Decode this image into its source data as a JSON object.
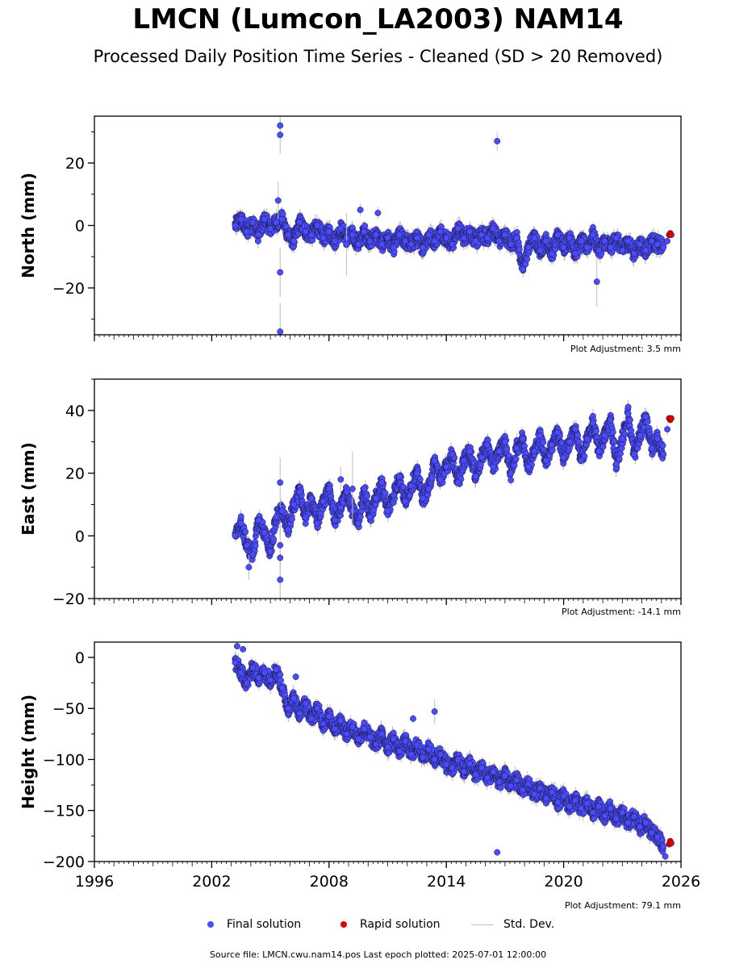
{
  "title": "LMCN (Lumcon_LA2003) NAM14",
  "subtitle": "Processed Daily Position Time Series - Cleaned (SD > 20 Removed)",
  "colors": {
    "final": "#4b4bff",
    "rapid": "#e00000",
    "stddev": "#bdbdbd"
  },
  "legend": {
    "final": "Final solution",
    "rapid": "Rapid solution",
    "stddev": "Std. Dev."
  },
  "source": "Source file: LMCN.cwu.nam14.pos  Last epoch plotted: 2025-07-01 12:00:00",
  "chart_data": [
    {
      "type": "scatter",
      "ylabel": "North (mm)",
      "adjustment": "Plot Adjustment: 3.5 mm",
      "xlim": [
        1996,
        2026
      ],
      "ylim": [
        -35,
        35
      ],
      "yticks": [
        -20,
        0,
        20
      ],
      "ytick_labels": [
        "−20",
        "0",
        "20"
      ],
      "series": [
        {
          "kind": "final",
          "x": [
            2003.2,
            2003.5,
            2003.8,
            2004.1,
            2004.4,
            2004.7,
            2005.0,
            2005.3,
            2005.6,
            2005.9,
            2006.2,
            2006.5,
            2006.8,
            2007.1,
            2007.4,
            2007.7,
            2008.0,
            2008.3,
            2008.6,
            2008.9,
            2009.2,
            2009.5,
            2009.8,
            2010.1,
            2010.4,
            2010.7,
            2011.0,
            2011.3,
            2011.6,
            2011.9,
            2012.2,
            2012.5,
            2012.8,
            2013.1,
            2013.4,
            2013.7,
            2014.0,
            2014.3,
            2014.6,
            2014.9,
            2015.2,
            2015.5,
            2015.8,
            2016.1,
            2016.4,
            2016.7,
            2017.0,
            2017.3,
            2017.6,
            2017.9,
            2018.2,
            2018.5,
            2018.8,
            2019.1,
            2019.4,
            2019.7,
            2020.0,
            2020.3,
            2020.6,
            2020.9,
            2021.2,
            2021.5,
            2021.8,
            2022.1,
            2022.4,
            2022.7,
            2023.0,
            2023.3,
            2023.6,
            2023.9,
            2024.2,
            2024.5,
            2024.8,
            2025.1
          ],
          "y": [
            0,
            2,
            -2,
            1,
            -3,
            2,
            -1,
            1,
            2,
            -3,
            -5,
            1,
            -2,
            -3,
            0,
            -4,
            -2,
            -5,
            -1,
            -4,
            -3,
            -6,
            -2,
            -5,
            -3,
            -6,
            -4,
            -7,
            -3,
            -5,
            -6,
            -4,
            -7,
            -3,
            -5,
            -2,
            -4,
            -6,
            -1,
            -4,
            -2,
            -5,
            -3,
            -4,
            -1,
            -5,
            -3,
            -6,
            -4,
            -14,
            -7,
            -4,
            -8,
            -5,
            -9,
            -3,
            -7,
            -4,
            -9,
            -5,
            -7,
            -3,
            -8,
            -5,
            -7,
            -4,
            -8,
            -5,
            -9,
            -6,
            -8,
            -5,
            -6,
            -7
          ],
          "err": [
            3,
            3,
            4,
            3,
            4,
            3,
            4,
            6,
            6,
            4,
            3,
            3,
            3,
            3,
            3,
            3,
            3,
            3,
            3,
            3,
            3,
            3,
            3,
            3,
            3,
            3,
            3,
            3,
            3,
            3,
            3,
            3,
            3,
            3,
            3,
            3,
            3,
            3,
            3,
            3,
            3,
            3,
            3,
            3,
            3,
            3,
            3,
            3,
            3,
            4,
            3,
            3,
            3,
            3,
            3,
            3,
            3,
            3,
            3,
            3,
            3,
            3,
            3,
            3,
            3,
            3,
            3,
            3,
            3,
            3,
            3,
            3,
            3,
            3
          ]
        },
        {
          "kind": "final_outliers",
          "x": [
            2005.5,
            2005.5,
            2005.5,
            2005.5,
            2016.6,
            2009.6,
            2010.5,
            2021.7,
            2025.3,
            2008.9,
            2005.4
          ],
          "y": [
            32,
            29,
            -15,
            -34,
            27,
            5,
            4,
            -18,
            -5,
            -6,
            8
          ],
          "err": [
            4,
            6,
            8,
            9,
            3,
            2,
            2,
            8,
            2,
            10,
            6
          ]
        },
        {
          "kind": "rapid",
          "x": [
            2025.4,
            2025.45,
            2025.5
          ],
          "y": [
            -3,
            -2.5,
            -3
          ],
          "err": [
            0,
            0,
            0
          ]
        }
      ]
    },
    {
      "type": "scatter",
      "ylabel": "East (mm)",
      "adjustment": "Plot Adjustment: -14.1 mm",
      "xlim": [
        1996,
        2026
      ],
      "ylim": [
        -20,
        50
      ],
      "yticks": [
        -20,
        0,
        20,
        40
      ],
      "ytick_labels": [
        "−20",
        "0",
        "20",
        "40"
      ],
      "series": [
        {
          "kind": "final",
          "x": [
            2003.2,
            2003.5,
            2003.8,
            2004.1,
            2004.4,
            2004.7,
            2005.0,
            2005.3,
            2005.6,
            2005.9,
            2006.2,
            2006.5,
            2006.8,
            2007.1,
            2007.4,
            2007.7,
            2008.0,
            2008.3,
            2008.6,
            2008.9,
            2009.2,
            2009.5,
            2009.8,
            2010.1,
            2010.4,
            2010.7,
            2011.0,
            2011.3,
            2011.6,
            2011.9,
            2012.2,
            2012.5,
            2012.8,
            2013.1,
            2013.4,
            2013.7,
            2014.0,
            2014.3,
            2014.6,
            2014.9,
            2015.2,
            2015.5,
            2015.8,
            2016.1,
            2016.4,
            2016.7,
            2017.0,
            2017.3,
            2017.6,
            2017.9,
            2018.2,
            2018.5,
            2018.8,
            2019.1,
            2019.4,
            2019.7,
            2020.0,
            2020.3,
            2020.6,
            2020.9,
            2021.2,
            2021.5,
            2021.8,
            2022.1,
            2022.4,
            2022.7,
            2023.0,
            2023.3,
            2023.6,
            2023.9,
            2024.2,
            2024.5,
            2024.8,
            2025.1
          ],
          "y": [
            0,
            4,
            -3,
            -6,
            5,
            1,
            -5,
            6,
            8,
            2,
            10,
            14,
            6,
            12,
            4,
            11,
            15,
            5,
            9,
            14,
            8,
            4,
            15,
            6,
            12,
            17,
            8,
            13,
            19,
            11,
            16,
            20,
            12,
            15,
            24,
            18,
            22,
            26,
            17,
            24,
            27,
            19,
            25,
            29,
            22,
            27,
            30,
            20,
            28,
            31,
            22,
            27,
            32,
            24,
            29,
            33,
            25,
            30,
            34,
            24,
            31,
            36,
            27,
            32,
            37,
            23,
            31,
            39,
            26,
            32,
            38,
            28,
            31,
            26
          ],
          "err": [
            3,
            3,
            3,
            3,
            3,
            3,
            3,
            3,
            3,
            3,
            3,
            3,
            3,
            3,
            3,
            3,
            3,
            3,
            3,
            3,
            3,
            3,
            3,
            3,
            3,
            3,
            3,
            3,
            3,
            3,
            3,
            3,
            3,
            3,
            3,
            3,
            3,
            3,
            3,
            3,
            3,
            3,
            3,
            3,
            3,
            3,
            3,
            3,
            3,
            3,
            3,
            3,
            3,
            3,
            3,
            3,
            3,
            3,
            3,
            3,
            3,
            3,
            3,
            3,
            3,
            3,
            3,
            3,
            3,
            3,
            3,
            3,
            3,
            3
          ]
        },
        {
          "kind": "final_outliers",
          "x": [
            2005.5,
            2005.5,
            2005.5,
            2005.5,
            2009.2,
            2008.6,
            2003.9,
            2025.3
          ],
          "y": [
            17,
            -3,
            -7,
            -14,
            15,
            18,
            -10,
            34
          ],
          "err": [
            8,
            8,
            10,
            12,
            12,
            4,
            4,
            2
          ]
        },
        {
          "kind": "rapid",
          "x": [
            2025.4,
            2025.45,
            2025.5
          ],
          "y": [
            37.5,
            37,
            37.5
          ],
          "err": [
            0,
            0,
            0
          ]
        }
      ]
    },
    {
      "type": "scatter",
      "ylabel": "Height (mm)",
      "adjustment": "Plot Adjustment: 79.1 mm",
      "xlim": [
        1996,
        2026
      ],
      "ylim": [
        -200,
        15
      ],
      "yticks": [
        -200,
        -150,
        -100,
        -50,
        0
      ],
      "ytick_labels": [
        "−200",
        "−150",
        "−100",
        "−50",
        "0"
      ],
      "series": [
        {
          "kind": "final",
          "x": [
            2003.2,
            2003.5,
            2003.8,
            2004.1,
            2004.4,
            2004.7,
            2005.0,
            2005.3,
            2005.6,
            2005.9,
            2006.2,
            2006.5,
            2006.8,
            2007.1,
            2007.4,
            2007.7,
            2008.0,
            2008.3,
            2008.6,
            2008.9,
            2009.2,
            2009.5,
            2009.8,
            2010.1,
            2010.4,
            2010.7,
            2011.0,
            2011.3,
            2011.6,
            2011.9,
            2012.2,
            2012.5,
            2012.8,
            2013.1,
            2013.4,
            2013.7,
            2014.0,
            2014.3,
            2014.6,
            2014.9,
            2015.2,
            2015.5,
            2015.8,
            2016.1,
            2016.4,
            2016.7,
            2017.0,
            2017.3,
            2017.6,
            2017.9,
            2018.2,
            2018.5,
            2018.8,
            2019.1,
            2019.4,
            2019.7,
            2020.0,
            2020.3,
            2020.6,
            2020.9,
            2021.2,
            2021.5,
            2021.8,
            2022.1,
            2022.4,
            2022.7,
            2023.0,
            2023.3,
            2023.6,
            2023.9,
            2024.2,
            2024.5,
            2024.8,
            2025.1
          ],
          "y": [
            -5,
            -15,
            -25,
            -10,
            -20,
            -15,
            -22,
            -12,
            -30,
            -50,
            -40,
            -55,
            -45,
            -60,
            -50,
            -65,
            -58,
            -70,
            -62,
            -75,
            -68,
            -80,
            -70,
            -78,
            -85,
            -75,
            -88,
            -80,
            -92,
            -82,
            -95,
            -86,
            -98,
            -90,
            -100,
            -95,
            -105,
            -108,
            -100,
            -112,
            -104,
            -115,
            -108,
            -118,
            -112,
            -122,
            -116,
            -126,
            -120,
            -130,
            -124,
            -134,
            -128,
            -138,
            -132,
            -142,
            -136,
            -146,
            -140,
            -148,
            -143,
            -152,
            -146,
            -155,
            -148,
            -158,
            -152,
            -162,
            -156,
            -166,
            -162,
            -172,
            -176,
            -185
          ],
          "err": [
            5,
            5,
            5,
            5,
            5,
            5,
            5,
            5,
            5,
            5,
            5,
            5,
            5,
            5,
            5,
            5,
            5,
            5,
            5,
            5,
            5,
            5,
            5,
            5,
            5,
            5,
            5,
            5,
            5,
            5,
            5,
            5,
            5,
            5,
            5,
            5,
            5,
            5,
            5,
            5,
            5,
            5,
            5,
            5,
            5,
            5,
            5,
            5,
            5,
            5,
            5,
            5,
            5,
            5,
            5,
            5,
            5,
            5,
            5,
            5,
            5,
            5,
            5,
            5,
            5,
            5,
            5,
            5,
            5,
            5,
            5,
            5,
            5,
            5
          ]
        },
        {
          "kind": "final_outliers",
          "x": [
            2003.3,
            2003.6,
            2006.3,
            2013.4,
            2016.6,
            2012.3,
            2025.2
          ],
          "y": [
            11,
            8,
            -19,
            -53,
            -191,
            -60,
            -195
          ],
          "err": [
            3,
            3,
            4,
            12,
            3,
            4,
            4
          ]
        },
        {
          "kind": "rapid",
          "x": [
            2025.4,
            2025.45,
            2025.5
          ],
          "y": [
            -183,
            -180,
            -182
          ],
          "err": [
            0,
            0,
            0
          ]
        }
      ]
    }
  ],
  "xticks": [
    1996,
    2002,
    2008,
    2014,
    2020,
    2026
  ],
  "xtick_labels": [
    "1996",
    "2002",
    "2008",
    "2014",
    "2020",
    "2026"
  ]
}
